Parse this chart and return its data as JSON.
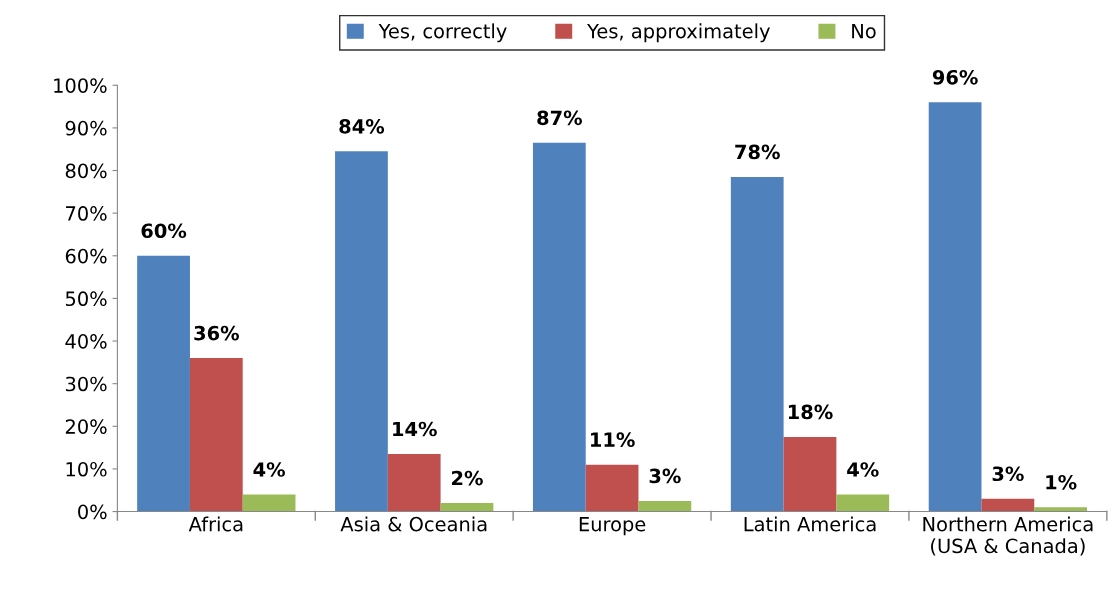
{
  "chart_data": {
    "type": "bar",
    "categories": [
      "Africa",
      "Asia & Oceania",
      "Europe",
      "Latin America",
      "Northern America\n(USA & Canada)"
    ],
    "series": [
      {
        "name": "Yes, correctly",
        "color": "#4f81bd",
        "values": [
          60,
          84.5,
          86.5,
          78.5,
          96
        ],
        "value_labels": [
          "60%",
          "84%",
          "87%",
          "78%",
          "96%"
        ]
      },
      {
        "name": "Yes, approximately",
        "color": "#c0504d",
        "values": [
          36,
          13.5,
          11,
          17.5,
          3
        ],
        "value_labels": [
          "36%",
          "14%",
          "11%",
          "18%",
          "3%"
        ]
      },
      {
        "name": "No",
        "color": "#9bbb59",
        "values": [
          4,
          2,
          2.5,
          4,
          1
        ],
        "value_labels": [
          "4%",
          "2%",
          "3%",
          "4%",
          "1%"
        ]
      }
    ],
    "ylim": [
      0,
      100
    ],
    "yticks": [
      {
        "value": 0,
        "label": "0%"
      },
      {
        "value": 10,
        "label": "10%"
      },
      {
        "value": 20,
        "label": "20%"
      },
      {
        "value": 30,
        "label": "30%"
      },
      {
        "value": 40,
        "label": "40%"
      },
      {
        "value": 50,
        "label": "50%"
      },
      {
        "value": 60,
        "label": "60%"
      },
      {
        "value": 70,
        "label": "70%"
      },
      {
        "value": 80,
        "label": "80%"
      },
      {
        "value": 90,
        "label": "90%"
      },
      {
        "value": 100,
        "label": "100%"
      }
    ],
    "grid": false,
    "legend": "top"
  }
}
